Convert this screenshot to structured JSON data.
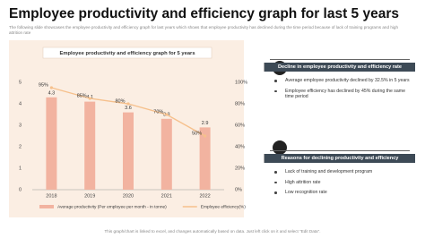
{
  "header": {
    "title": "Employee productivity and efficiency graph for last 5 years",
    "subtitle": "The following slide showcases the employee productivity and efficiency graph for last years which shows that employee productivity has declined during the time period because of lack of training programs and high attrition rate"
  },
  "chart_data": {
    "type": "bar",
    "title": "Employee productivity and efficiency graph for 5 years",
    "categories": [
      "2018",
      "2019",
      "2020",
      "2021",
      "2022"
    ],
    "series": [
      {
        "name": "Average productivity (Per employee per month - in tonne)",
        "type": "bar",
        "color": "#f2b3a0",
        "values": [
          4.3,
          4.1,
          3.6,
          3.3,
          2.9
        ]
      },
      {
        "name": "Employee efficiency(%)",
        "type": "line",
        "axis": "y2",
        "color": "#f6c08c",
        "values": [
          95,
          85,
          80,
          70,
          50
        ],
        "value_labels": [
          "95%",
          "85%",
          "80%",
          "70%",
          "50%"
        ]
      }
    ],
    "ylim": [
      0,
      5
    ],
    "yticks": [
      0,
      1,
      2,
      3,
      4,
      5
    ],
    "y2lim": [
      0,
      100
    ],
    "y2ticks": [
      {
        "value": 0,
        "label": "0%"
      },
      {
        "value": 20,
        "label": "20%"
      },
      {
        "value": 40,
        "label": "40%"
      },
      {
        "value": 60,
        "label": "60%"
      },
      {
        "value": 80,
        "label": "80%"
      },
      {
        "value": 100,
        "label": "100%"
      }
    ],
    "grid": false,
    "legend": "bottom"
  },
  "sections": [
    {
      "heading": "Decline in employee productivity and efficiency rate",
      "bullets": [
        "Average employee productivity declined by 32.5% in 5 years",
        "Employee efficiency has declined by 45% during the same time period"
      ]
    },
    {
      "heading": "Reasons for declining productivity and efficiency",
      "bullets": [
        "Lack of training and development program",
        "High attrition rate",
        "Low recognition rate"
      ]
    }
  ],
  "footer": "This graph/chart is linked to excel, and changes automatically based on data. Just left click on it and select \"Edit Data\"."
}
